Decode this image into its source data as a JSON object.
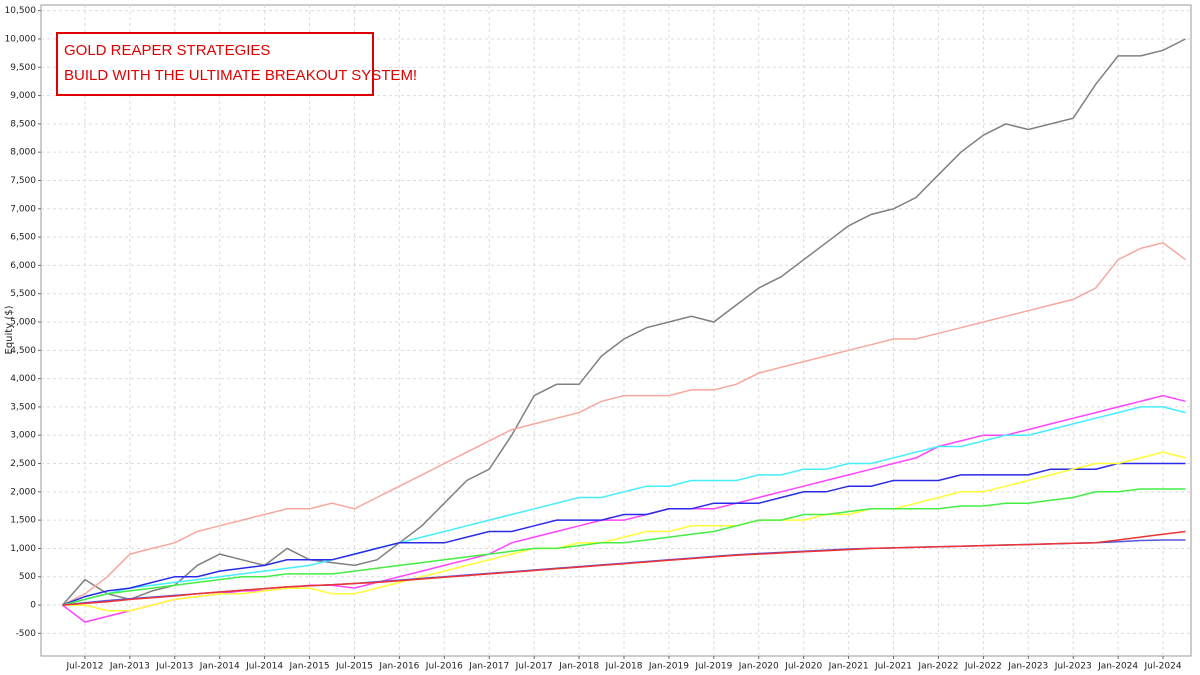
{
  "chart_data": {
    "type": "line",
    "annotation": [
      "GOLD REAPER STRATEGIES",
      "BUILD WITH THE ULTIMATE BREAKOUT SYSTEM!"
    ],
    "y_label": "Equity ($)",
    "x": [
      "Apr-2012",
      "Jul-2012",
      "Oct-2012",
      "Jan-2013",
      "Apr-2013",
      "Jul-2013",
      "Oct-2013",
      "Jan-2014",
      "Apr-2014",
      "Jul-2014",
      "Oct-2014",
      "Jan-2015",
      "Apr-2015",
      "Jul-2015",
      "Oct-2015",
      "Jan-2016",
      "Apr-2016",
      "Jul-2016",
      "Oct-2016",
      "Jan-2017",
      "Apr-2017",
      "Jul-2017",
      "Oct-2017",
      "Jan-2018",
      "Apr-2018",
      "Jul-2018",
      "Oct-2018",
      "Jan-2019",
      "Apr-2019",
      "Jul-2019",
      "Oct-2019",
      "Jan-2020",
      "Apr-2020",
      "Jul-2020",
      "Oct-2020",
      "Jan-2021",
      "Apr-2021",
      "Jul-2021",
      "Oct-2021",
      "Jan-2022",
      "Apr-2022",
      "Jul-2022",
      "Oct-2022",
      "Jan-2023",
      "Apr-2023",
      "Jul-2023",
      "Oct-2023",
      "Jan-2024",
      "Apr-2024",
      "Jul-2024",
      "Oct-2024"
    ],
    "xticks": [
      "Jul-2012",
      "Jan-2013",
      "Jul-2013",
      "Jan-2014",
      "Jul-2014",
      "Jan-2015",
      "Jul-2015",
      "Jan-2016",
      "Jul-2016",
      "Jan-2017",
      "Jul-2017",
      "Jan-2018",
      "Jul-2018",
      "Jan-2019",
      "Jul-2019",
      "Jan-2020",
      "Jul-2020",
      "Jan-2021",
      "Jul-2021",
      "Jan-2022",
      "Jul-2022",
      "Jan-2023",
      "Jul-2023",
      "Jan-2024",
      "Jul-2024"
    ],
    "ylim": [
      -900,
      10600
    ],
    "yticks": [
      -500,
      0,
      500,
      {
        "value": 1000,
        "label": "1,000"
      },
      {
        "value": 1500,
        "label": "1,500"
      },
      {
        "value": 2000,
        "label": "2,000"
      },
      {
        "value": 2500,
        "label": "2,500"
      },
      {
        "value": 3000,
        "label": "3,000"
      },
      {
        "value": 3500,
        "label": "3,500"
      },
      {
        "value": 4000,
        "label": "4,000"
      },
      {
        "value": 4500,
        "label": "4,500"
      },
      {
        "value": 5000,
        "label": "5,000"
      },
      {
        "value": 5500,
        "label": "5,500"
      },
      {
        "value": 6000,
        "label": "6,000"
      },
      {
        "value": 6500,
        "label": "6,500"
      },
      {
        "value": 7000,
        "label": "7,000"
      },
      {
        "value": 7500,
        "label": "7,500"
      },
      {
        "value": 8000,
        "label": "8,000"
      },
      {
        "value": 8500,
        "label": "8,500"
      },
      {
        "value": 9000,
        "label": "9,000"
      },
      {
        "value": 9500,
        "label": "9,500"
      },
      {
        "value": 10000,
        "label": "10,000"
      },
      {
        "value": 10500,
        "label": "10,500"
      }
    ],
    "grid": true,
    "series": [
      {
        "color": "#808080",
        "values": [
          0,
          450,
          200,
          100,
          250,
          350,
          700,
          900,
          800,
          700,
          1000,
          800,
          750,
          700,
          800,
          1100,
          1400,
          1800,
          2200,
          2400,
          3000,
          3700,
          3900,
          3900,
          4400,
          4700,
          4900,
          5000,
          5100,
          5000,
          5300,
          5600,
          5800,
          6100,
          6400,
          6700,
          6900,
          7000,
          7200,
          7600,
          8000,
          8300,
          8500,
          8400,
          8500,
          8600,
          9200,
          9700,
          9700,
          9800,
          10000
        ]
      },
      {
        "color": "#f6a89e",
        "values": [
          0,
          200,
          500,
          900,
          1000,
          1100,
          1300,
          1400,
          1500,
          1600,
          1700,
          1700,
          1800,
          1700,
          1900,
          2100,
          2300,
          2500,
          2700,
          2900,
          3100,
          3200,
          3300,
          3400,
          3600,
          3700,
          3700,
          3700,
          3800,
          3800,
          3900,
          4100,
          4200,
          4300,
          4400,
          4500,
          4600,
          4700,
          4700,
          4800,
          4900,
          5000,
          5100,
          5200,
          5300,
          5400,
          5600,
          6100,
          6300,
          6400,
          6100
        ]
      },
      {
        "color": "#ff44ff",
        "values": [
          0,
          -300,
          -200,
          -100,
          0,
          100,
          150,
          200,
          250,
          250,
          300,
          350,
          350,
          300,
          400,
          500,
          600,
          700,
          800,
          900,
          1100,
          1200,
          1300,
          1400,
          1500,
          1500,
          1600,
          1700,
          1700,
          1700,
          1800,
          1900,
          2000,
          2100,
          2200,
          2300,
          2400,
          2500,
          2600,
          2800,
          2900,
          3000,
          3000,
          3100,
          3200,
          3300,
          3400,
          3500,
          3600,
          3700,
          3600
        ]
      },
      {
        "color": "#44eeff",
        "values": [
          0,
          100,
          200,
          300,
          350,
          400,
          450,
          500,
          550,
          600,
          650,
          700,
          800,
          900,
          1000,
          1100,
          1200,
          1300,
          1400,
          1500,
          1600,
          1700,
          1800,
          1900,
          1900,
          2000,
          2100,
          2100,
          2200,
          2200,
          2200,
          2300,
          2300,
          2400,
          2400,
          2500,
          2500,
          2600,
          2700,
          2800,
          2800,
          2900,
          3000,
          3000,
          3100,
          3200,
          3300,
          3400,
          3500,
          3500,
          3400
        ]
      },
      {
        "color": "#2a2ae8",
        "values": [
          0,
          150,
          250,
          300,
          400,
          500,
          500,
          600,
          650,
          700,
          800,
          800,
          800,
          900,
          1000,
          1100,
          1100,
          1100,
          1200,
          1300,
          1300,
          1400,
          1500,
          1500,
          1500,
          1600,
          1600,
          1700,
          1700,
          1800,
          1800,
          1800,
          1900,
          2000,
          2000,
          2100,
          2100,
          2200,
          2200,
          2200,
          2300,
          2300,
          2300,
          2300,
          2400,
          2400,
          2400,
          2500,
          2500,
          2500,
          2500
        ]
      },
      {
        "color": "#ffff33",
        "values": [
          0,
          0,
          -100,
          -100,
          0,
          100,
          150,
          200,
          200,
          250,
          300,
          300,
          200,
          200,
          300,
          400,
          500,
          600,
          700,
          800,
          900,
          1000,
          1000,
          1100,
          1100,
          1200,
          1300,
          1300,
          1400,
          1400,
          1400,
          1500,
          1500,
          1500,
          1600,
          1600,
          1700,
          1700,
          1800,
          1900,
          2000,
          2000,
          2100,
          2200,
          2300,
          2400,
          2500,
          2500,
          2600,
          2700,
          2600
        ]
      },
      {
        "color": "#44ee44",
        "values": [
          0,
          100,
          200,
          250,
          300,
          350,
          400,
          450,
          500,
          500,
          550,
          550,
          550,
          600,
          650,
          700,
          750,
          800,
          850,
          900,
          950,
          1000,
          1000,
          1050,
          1100,
          1100,
          1150,
          1200,
          1250,
          1300,
          1400,
          1500,
          1500,
          1600,
          1600,
          1650,
          1700,
          1700,
          1700,
          1700,
          1750,
          1750,
          1800,
          1800,
          1850,
          1900,
          2000,
          2000,
          2050,
          2050,
          2050
        ]
      },
      {
        "color": "#5555dd",
        "values": [
          0,
          40,
          80,
          110,
          140,
          170,
          200,
          230,
          260,
          290,
          320,
          340,
          360,
          380,
          410,
          440,
          470,
          500,
          530,
          560,
          590,
          620,
          650,
          680,
          710,
          740,
          770,
          800,
          830,
          860,
          890,
          910,
          930,
          950,
          970,
          990,
          1000,
          1010,
          1020,
          1030,
          1040,
          1050,
          1060,
          1070,
          1080,
          1090,
          1100,
          1120,
          1140,
          1150,
          1150
        ]
      },
      {
        "color": "#ee3333",
        "values": [
          0,
          30,
          60,
          100,
          130,
          160,
          200,
          230,
          260,
          290,
          320,
          340,
          360,
          380,
          400,
          430,
          460,
          490,
          520,
          550,
          580,
          610,
          640,
          670,
          700,
          730,
          760,
          790,
          820,
          850,
          880,
          900,
          920,
          940,
          960,
          980,
          1000,
          1010,
          1020,
          1030,
          1040,
          1050,
          1060,
          1070,
          1080,
          1090,
          1100,
          1150,
          1200,
          1250,
          1300
        ]
      }
    ]
  }
}
